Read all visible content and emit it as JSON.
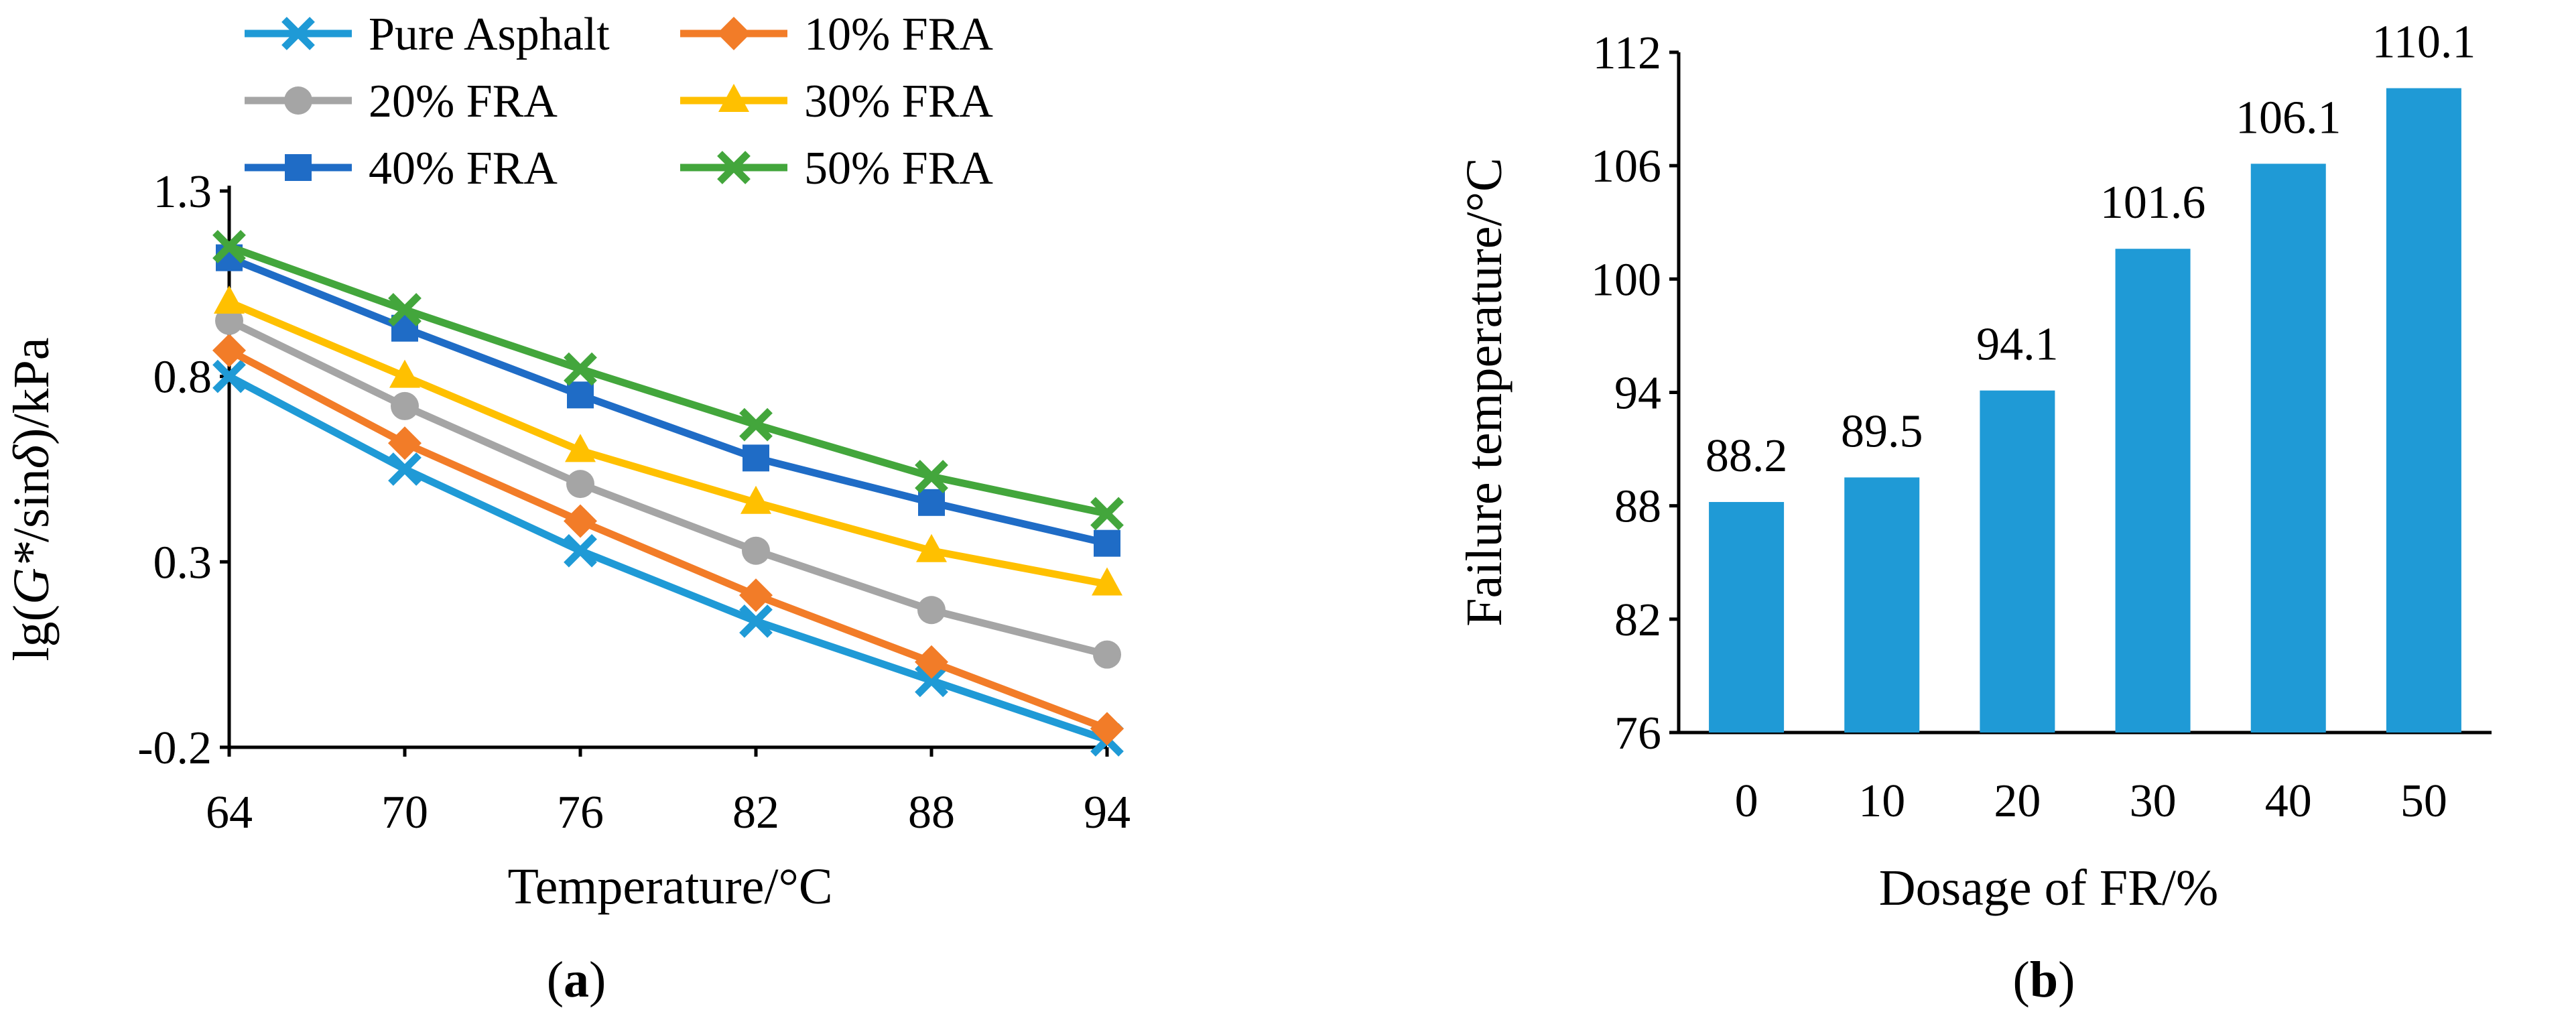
{
  "chart_data": [
    {
      "panel": "a",
      "type": "line",
      "xlabel": "Temperature/°C",
      "ylabel_parts": [
        "lg(",
        "G*",
        "/sin",
        "δ",
        ")/kPa"
      ],
      "x": [
        64,
        70,
        76,
        82,
        88,
        94
      ],
      "xlim": [
        64,
        94
      ],
      "ylim": [
        -0.2,
        1.3
      ],
      "yticks": [
        -0.2,
        0.3,
        0.8,
        1.3
      ],
      "ytick_labels": [
        "-0.2",
        "0.3",
        "0.8",
        "1.3"
      ],
      "legend_position": "top",
      "series": [
        {
          "name": "Pure Asphalt",
          "color": "#1F9AD6",
          "marker": "x-cross",
          "values": [
            0.8,
            0.55,
            0.33,
            0.14,
            -0.02,
            -0.18
          ]
        },
        {
          "name": "10% FRA",
          "color": "#F27C28",
          "marker": "diamond",
          "values": [
            0.87,
            0.62,
            0.41,
            0.21,
            0.03,
            -0.15
          ]
        },
        {
          "name": "20% FRA",
          "color": "#A5A5A5",
          "marker": "circle",
          "values": [
            0.95,
            0.72,
            0.51,
            0.33,
            0.17,
            0.05
          ]
        },
        {
          "name": "30% FRA",
          "color": "#FFC000",
          "marker": "triangle",
          "values": [
            1.0,
            0.8,
            0.6,
            0.46,
            0.33,
            0.24
          ]
        },
        {
          "name": "40% FRA",
          "color": "#1F6CC6",
          "marker": "square",
          "values": [
            1.12,
            0.93,
            0.75,
            0.58,
            0.46,
            0.35
          ]
        },
        {
          "name": "50% FRA",
          "color": "#43A63C",
          "marker": "x-cross",
          "values": [
            1.15,
            0.98,
            0.82,
            0.67,
            0.53,
            0.43
          ]
        }
      ]
    },
    {
      "panel": "b",
      "type": "bar",
      "xlabel": "Dosage of FR/%",
      "ylabel": "Failure temperature/°C",
      "categories": [
        "0",
        "10",
        "20",
        "30",
        "40",
        "50"
      ],
      "values": [
        88.2,
        89.5,
        94.1,
        101.6,
        106.1,
        110.1
      ],
      "data_labels": [
        "88.2",
        "89.5",
        "94.1",
        "101.6",
        "106.1",
        "110.1"
      ],
      "ylim": [
        76,
        112
      ],
      "yticks": [
        76,
        82,
        88,
        94,
        100,
        106,
        112
      ],
      "bar_color": "#1F9AD6"
    }
  ],
  "captions": {
    "a": {
      "open": "(",
      "letter": "a",
      "close": ")"
    },
    "b": {
      "open": "(",
      "letter": "b",
      "close": ")"
    }
  }
}
